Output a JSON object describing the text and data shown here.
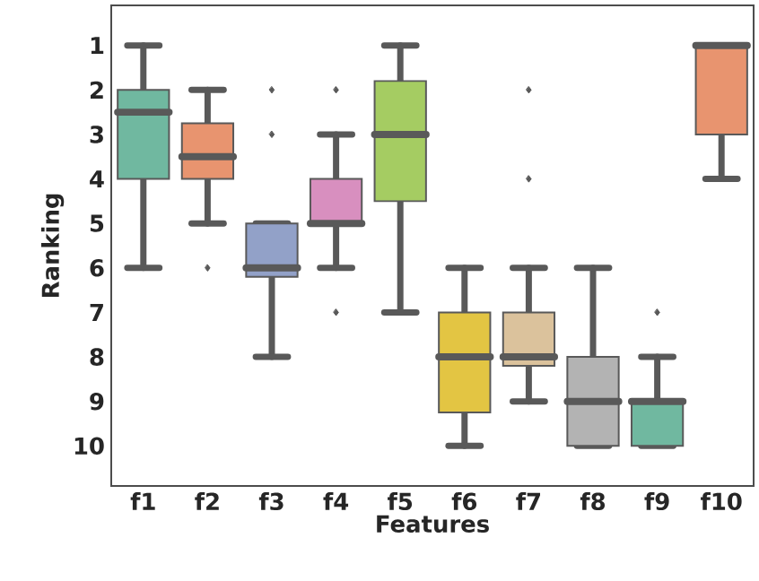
{
  "chart_data": {
    "type": "box",
    "xlabel": "Features",
    "ylabel": "Ranking",
    "categories": [
      "f1",
      "f2",
      "f3",
      "f4",
      "f5",
      "f6",
      "f7",
      "f8",
      "f9",
      "f10"
    ],
    "colors": [
      "#70b8a0",
      "#e8946f",
      "#92a1c8",
      "#d88fbf",
      "#a5cc62",
      "#e3c543",
      "#dbc29c",
      "#b3b3b3",
      "#70b8a0",
      "#e8946f"
    ],
    "boxes": [
      {
        "low": 1,
        "q1": 2,
        "median": 2.5,
        "q3": 4,
        "high": 6
      },
      {
        "low": 2,
        "q1": 2.75,
        "median": 3.5,
        "q3": 4,
        "high": 5,
        "outliers": [
          6
        ]
      },
      {
        "low": 5,
        "q1": 5,
        "median": 6,
        "q3": 6.2,
        "high": 8,
        "outliers": [
          2,
          3
        ]
      },
      {
        "low": 3,
        "q1": 4,
        "median": 5,
        "q3": 5,
        "high": 6,
        "outliers": [
          2,
          7
        ]
      },
      {
        "low": 1,
        "q1": 1.8,
        "median": 3,
        "q3": 4.5,
        "high": 7
      },
      {
        "low": 6,
        "q1": 7,
        "median": 8,
        "q3": 9.25,
        "high": 10
      },
      {
        "low": 6,
        "q1": 7,
        "median": 8,
        "q3": 8.2,
        "high": 9,
        "outliers": [
          2,
          4
        ]
      },
      {
        "low": 6,
        "q1": 8,
        "median": 9,
        "q3": 10,
        "high": 10
      },
      {
        "low": 8,
        "q1": 9,
        "median": 9,
        "q3": 10,
        "high": 10,
        "outliers": [
          7
        ]
      },
      {
        "low": 1,
        "q1": 1,
        "median": 1,
        "q3": 3,
        "high": 4
      }
    ],
    "ylim": [
      10.9,
      0.1
    ],
    "yticks": [
      1,
      2,
      3,
      4,
      5,
      6,
      7,
      8,
      9,
      10
    ],
    "marker": "diamond"
  }
}
